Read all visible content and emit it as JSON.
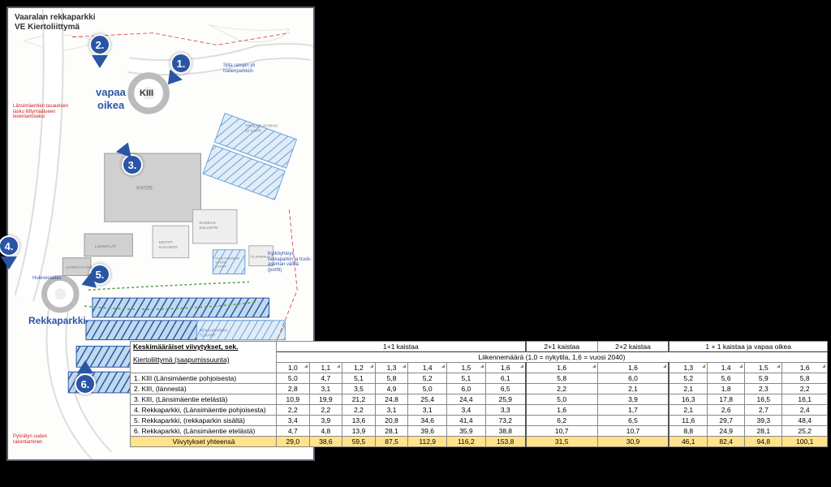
{
  "map": {
    "title_line1": "Vaaralan rekkaparkki",
    "title_line2": "VE Kiertoliittymä",
    "label_vapaa": "vapaa",
    "label_oikea": "oikea",
    "label_kiii": "KIII",
    "label_rekkaparkki": "Rekkaparkki",
    "note1": "Länsimäentien tasauksen lasku liittymäalueen leventamiseksi",
    "note2": "Silta rampin yli traileriparkkiin",
    "note3": "Kytköyhteys rekkaparkin ja truck-aseman välillä (portti)",
    "note4": "Pyörätyn uuden rakentaminen",
    "map_labels": {
      "katos": "KATOS",
      "luhistlat": "LUHISTLAT",
      "ajoneuvo": "AJONEUVO-HALLI",
      "kevyt": "KEVYT-KALUSTO",
      "raskas": "RASKAS-KALUSTO",
      "huolto": "HUOLTOASEMA 16 KAM 8 KAPP",
      "tila": "TILAVARAUS",
      "trailer": "TRAILER-PARKKI 52 KAPP",
      "rekkap1": "REKKAPARKKI 72 KAPP",
      "hulevesi": "Hulevesiallas"
    },
    "markers": {
      "m1": "1.",
      "m2": "2.",
      "m3": "3.",
      "m4": "4.",
      "m5": "5.",
      "m6": "6."
    }
  },
  "table": {
    "header_main": "Keskimääräiset viivytykset, sek.",
    "header_sub": "Kiertoliittymä (saapumissuunta)",
    "group_labels": {
      "g1": "1+1 kaistaa",
      "g2": "2+1 kaistaa",
      "g3": "2+2 kaistaa",
      "g4": "1 + 1 kaistaa ja vapaa oikea"
    },
    "span_label": "Liikennemäärä (1,0 = nykytila, 1,6 = vuosi 2040)",
    "cols": [
      "1,0",
      "1,1",
      "1,2",
      "1,3",
      "1,4",
      "1,5",
      "1,6",
      "1,6",
      "1,6",
      "1,3",
      "1,4",
      "1,5",
      "1,6"
    ],
    "rows": [
      {
        "name": "1.  KIII (Länsimäentie pohjoisesta)",
        "v": [
          "5,0",
          "4,7",
          "5,1",
          "5,8",
          "5,2",
          "5,1",
          "6,1",
          "5,8",
          "6,0",
          "5,2",
          "5,6",
          "5,9",
          "5,8"
        ]
      },
      {
        "name": "2.  KIII, (lännestä)",
        "v": [
          "2,8",
          "3,1",
          "3,5",
          "4,9",
          "5,0",
          "6,0",
          "6,5",
          "2,2",
          "2,1",
          "2,1",
          "1,8",
          "2,3",
          "2,2"
        ]
      },
      {
        "name": "3.  KIII, (Länsimäentie etelästä)",
        "v": [
          "10,9",
          "19,9",
          "21,2",
          "24,8",
          "25,4",
          "24,4",
          "25,9",
          "5,0",
          "3,9",
          "16,3",
          "17,8",
          "16,5",
          "16,1"
        ]
      },
      {
        "name": "4.  Rekkaparkki, (Länsimäentie pohjoisesta)",
        "v": [
          "2,2",
          "2,2",
          "2,2",
          "3,1",
          "3,1",
          "3,4",
          "3,3",
          "1,6",
          "1,7",
          "2,1",
          "2,6",
          "2,7",
          "2,4"
        ]
      },
      {
        "name": "5.  Rekkaparkki, (rekkaparkin sisältä)",
        "v": [
          "3,4",
          "3,9",
          "13,6",
          "20,8",
          "34,6",
          "41,4",
          "73,2",
          "6,2",
          "6,5",
          "11,6",
          "29,7",
          "39,3",
          "48,4"
        ]
      },
      {
        "name": "6.  Rekkaparkki, (Länsimäentie etelästä)",
        "v": [
          "4,7",
          "4,8",
          "13,9",
          "28,1",
          "39,6",
          "35,9",
          "38,8",
          "10,7",
          "10,7",
          "8,8",
          "24,9",
          "28,1",
          "25,2"
        ]
      }
    ],
    "total": {
      "name": "Viivytykset yhteensä",
      "v": [
        "29,0",
        "38,6",
        "59,5",
        "87,5",
        "112,9",
        "116,2",
        "153,8",
        "31,5",
        "30,9",
        "46,1",
        "82,4",
        "94,8",
        "100,1"
      ]
    }
  },
  "colors": {
    "marker_bg": "#2a55a5",
    "total_bg": "#ffe28a",
    "map_border": "#5a5a6a"
  }
}
